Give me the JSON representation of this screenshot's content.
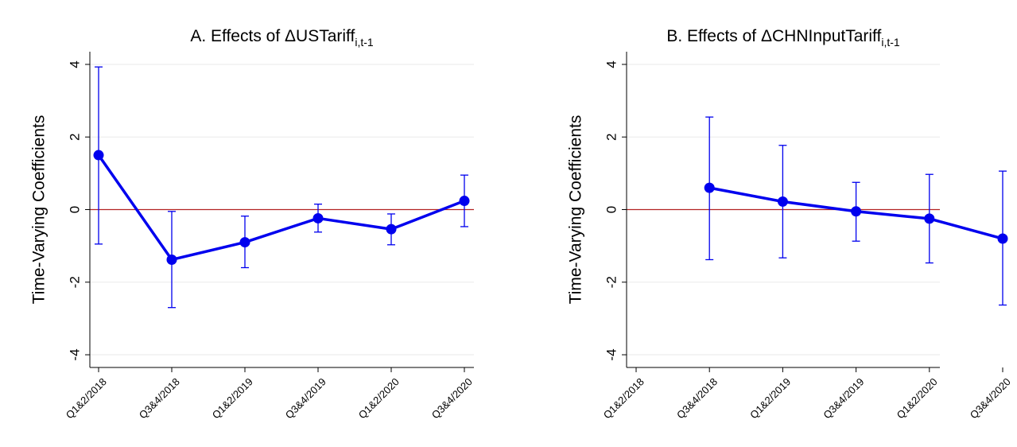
{
  "chart_data": [
    {
      "type": "line",
      "title": "A. Effects of ΔUSTariff",
      "title_subscript": "i,t-1",
      "y_label": "Time-Varying Coefficients",
      "categories": [
        "Q1&2/2018",
        "Q3&4/2018",
        "Q1&2/2019",
        "Q3&4/2019",
        "Q1&2/2020",
        "Q3&4/2020"
      ],
      "series": [
        {
          "color": "#0000ee",
          "values": [
            1.5,
            -1.38,
            -0.9,
            -0.24,
            -0.54,
            0.24
          ],
          "lower": [
            -0.95,
            -2.7,
            -1.6,
            -0.62,
            -0.97,
            -0.47
          ],
          "upper": [
            3.93,
            -0.05,
            -0.18,
            0.15,
            -0.12,
            0.95
          ]
        }
      ],
      "ylim": [
        -4.35,
        4.35
      ],
      "yticks": [
        -4,
        -2,
        0,
        2,
        4
      ],
      "grid": true,
      "reference_line": 0,
      "reference_color": "#b22222"
    },
    {
      "type": "line",
      "title": "B. Effects of ΔCHNInputTariff",
      "title_subscript": "i,t-1",
      "y_label": "Time-Varying Coefficients",
      "categories": [
        "Q1&2/2018",
        "Q3&4/2018",
        "Q1&2/2019",
        "Q3&4/2019",
        "Q1&2/2020",
        "Q3&4/2020"
      ],
      "series": [
        {
          "color": "#0000ee",
          "values": [
            null,
            0.6,
            0.22,
            -0.05,
            -0.25,
            -0.8
          ],
          "lower": [
            null,
            -1.38,
            -1.33,
            -0.87,
            -1.47,
            -2.63
          ],
          "upper": [
            null,
            2.55,
            1.77,
            0.75,
            0.97,
            1.06
          ]
        }
      ],
      "ylim": [
        -4.35,
        4.35
      ],
      "yticks": [
        -4,
        -2,
        0,
        2,
        4
      ],
      "grid": true,
      "reference_line": 0,
      "reference_color": "#b22222"
    }
  ]
}
